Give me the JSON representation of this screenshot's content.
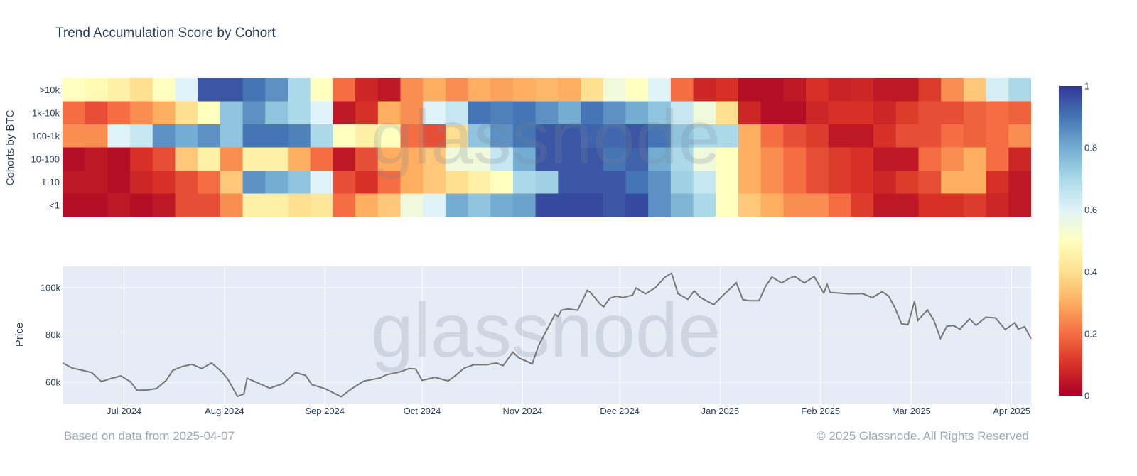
{
  "title": "Trend Accumulation Score by Cohort",
  "footer": {
    "left": "Based on data from 2025-04-07",
    "right": "© 2025 Glassnode. All Rights Reserved"
  },
  "watermark": "glassnode",
  "chart_data": [
    {
      "type": "heatmap",
      "ylabel": "Cohorts by BTC",
      "colorscale": "RdYlBu",
      "colors": [
        "#a50026",
        "#d73027",
        "#f46d43",
        "#fdae61",
        "#fee090",
        "#ffffbf",
        "#e0f3f8",
        "#abd9e9",
        "#74add1",
        "#4575b4",
        "#313695"
      ],
      "zlim": [
        0,
        1
      ],
      "colorbar_ticks": [
        "0",
        "0.2",
        "0.4",
        "0.6",
        "0.8",
        "1"
      ],
      "x_start": "2024-06-12",
      "x_end": "2025-04-07",
      "x_step": "weekly",
      "rows": [
        {
          "label": ">10k",
          "values": [
            0.5,
            0.48,
            0.45,
            0.4,
            0.5,
            0.6,
            0.95,
            0.95,
            0.9,
            0.85,
            0.7,
            0.5,
            0.2,
            0.08,
            0.05,
            0.25,
            0.3,
            0.25,
            0.3,
            0.28,
            0.3,
            0.32,
            0.3,
            0.4,
            0.55,
            0.5,
            0.6,
            0.2,
            0.08,
            0.1,
            0.03,
            0.03,
            0.05,
            0.1,
            0.07,
            0.08,
            0.05,
            0.05,
            0.12,
            0.25,
            0.35,
            0.62,
            0.7
          ]
        },
        {
          "label": "1k-10k",
          "values": [
            0.2,
            0.15,
            0.2,
            0.25,
            0.3,
            0.4,
            0.5,
            0.75,
            0.85,
            0.75,
            0.7,
            0.6,
            0.05,
            0.1,
            0.3,
            0.25,
            0.6,
            0.65,
            0.9,
            0.88,
            0.9,
            0.85,
            0.8,
            0.9,
            0.85,
            0.8,
            0.75,
            0.65,
            0.55,
            0.4,
            0.08,
            0.03,
            0.03,
            0.08,
            0.1,
            0.1,
            0.08,
            0.12,
            0.15,
            0.15,
            0.18,
            0.2,
            0.18
          ]
        },
        {
          "label": "100-1k",
          "values": [
            0.25,
            0.25,
            0.6,
            0.65,
            0.85,
            0.8,
            0.85,
            0.75,
            0.9,
            0.9,
            0.88,
            0.7,
            0.5,
            0.45,
            0.5,
            0.2,
            0.15,
            0.4,
            0.75,
            0.85,
            0.9,
            0.95,
            0.95,
            0.93,
            0.92,
            0.95,
            0.9,
            0.75,
            0.7,
            0.7,
            0.3,
            0.2,
            0.15,
            0.12,
            0.05,
            0.05,
            0.1,
            0.15,
            0.15,
            0.2,
            0.18,
            0.2,
            0.25
          ]
        },
        {
          "label": "10-100",
          "values": [
            0.03,
            0.05,
            0.03,
            0.1,
            0.15,
            0.35,
            0.45,
            0.25,
            0.45,
            0.45,
            0.3,
            0.2,
            0.05,
            0.15,
            0.3,
            0.3,
            0.35,
            0.55,
            0.55,
            0.65,
            0.8,
            0.95,
            0.95,
            0.95,
            0.9,
            0.93,
            0.8,
            0.7,
            0.55,
            0.5,
            0.3,
            0.25,
            0.2,
            0.15,
            0.12,
            0.1,
            0.05,
            0.05,
            0.2,
            0.25,
            0.3,
            0.2,
            0.08
          ]
        },
        {
          "label": "1-10",
          "values": [
            0.05,
            0.05,
            0.03,
            0.08,
            0.1,
            0.15,
            0.2,
            0.35,
            0.85,
            0.8,
            0.75,
            0.6,
            0.15,
            0.1,
            0.2,
            0.3,
            0.35,
            0.4,
            0.45,
            0.5,
            0.7,
            0.72,
            0.95,
            0.95,
            0.95,
            0.9,
            0.85,
            0.72,
            0.65,
            0.5,
            0.3,
            0.25,
            0.2,
            0.15,
            0.12,
            0.1,
            0.08,
            0.12,
            0.15,
            0.3,
            0.3,
            0.1,
            0.05
          ]
        },
        {
          "label": "<1",
          "values": [
            0.03,
            0.03,
            0.05,
            0.03,
            0.05,
            0.15,
            0.15,
            0.25,
            0.45,
            0.45,
            0.4,
            0.42,
            0.2,
            0.3,
            0.35,
            0.55,
            0.6,
            0.8,
            0.75,
            0.8,
            0.82,
            0.97,
            0.97,
            0.97,
            0.95,
            0.97,
            0.85,
            0.78,
            0.7,
            0.5,
            0.35,
            0.3,
            0.25,
            0.25,
            0.2,
            0.12,
            0.05,
            0.05,
            0.1,
            0.1,
            0.12,
            0.08,
            0.05
          ]
        }
      ]
    },
    {
      "type": "line",
      "ylabel": "Price",
      "ylim": [
        51000,
        109000
      ],
      "yticks": [
        {
          "v": 60000,
          "label": "60k"
        },
        {
          "v": 80000,
          "label": "80k"
        },
        {
          "v": 100000,
          "label": "100k"
        }
      ],
      "xticks": [
        {
          "date": "2024-07-01",
          "label": "Jul 2024"
        },
        {
          "date": "2024-08-01",
          "label": "Aug 2024"
        },
        {
          "date": "2024-09-01",
          "label": "Sep 2024"
        },
        {
          "date": "2024-10-01",
          "label": "Oct 2024"
        },
        {
          "date": "2024-11-01",
          "label": "Nov 2024"
        },
        {
          "date": "2024-12-01",
          "label": "Dec 2024"
        },
        {
          "date": "2025-01-01",
          "label": "Jan 2025"
        },
        {
          "date": "2025-02-01",
          "label": "Feb 2025"
        },
        {
          "date": "2025-03-01",
          "label": "Mar 2025"
        },
        {
          "date": "2025-04-01",
          "label": "Apr 2025"
        }
      ],
      "line_color": "#777777",
      "grid": true,
      "points": [
        [
          "2024-06-12",
          68200
        ],
        [
          "2024-06-15",
          66000
        ],
        [
          "2024-06-18",
          65100
        ],
        [
          "2024-06-21",
          64100
        ],
        [
          "2024-06-24",
          60300
        ],
        [
          "2024-06-27",
          61600
        ],
        [
          "2024-06-30",
          62700
        ],
        [
          "2024-07-03",
          60200
        ],
        [
          "2024-07-05",
          56600
        ],
        [
          "2024-07-08",
          56700
        ],
        [
          "2024-07-11",
          57300
        ],
        [
          "2024-07-14",
          60800
        ],
        [
          "2024-07-16",
          65000
        ],
        [
          "2024-07-19",
          66700
        ],
        [
          "2024-07-22",
          67600
        ],
        [
          "2024-07-25",
          65800
        ],
        [
          "2024-07-28",
          68200
        ],
        [
          "2024-07-31",
          64600
        ],
        [
          "2024-08-02",
          61400
        ],
        [
          "2024-08-05",
          54000
        ],
        [
          "2024-08-07",
          55100
        ],
        [
          "2024-08-08",
          61700
        ],
        [
          "2024-08-12",
          59300
        ],
        [
          "2024-08-15",
          57500
        ],
        [
          "2024-08-19",
          59400
        ],
        [
          "2024-08-23",
          64100
        ],
        [
          "2024-08-26",
          62900
        ],
        [
          "2024-08-28",
          59000
        ],
        [
          "2024-09-01",
          57300
        ],
        [
          "2024-09-06",
          53900
        ],
        [
          "2024-09-09",
          57000
        ],
        [
          "2024-09-13",
          60500
        ],
        [
          "2024-09-18",
          61800
        ],
        [
          "2024-09-20",
          63200
        ],
        [
          "2024-09-24",
          64300
        ],
        [
          "2024-09-27",
          65800
        ],
        [
          "2024-09-29",
          65600
        ],
        [
          "2024-10-01",
          60800
        ],
        [
          "2024-10-05",
          62100
        ],
        [
          "2024-10-09",
          60600
        ],
        [
          "2024-10-11",
          62500
        ],
        [
          "2024-10-14",
          66000
        ],
        [
          "2024-10-17",
          67400
        ],
        [
          "2024-10-21",
          67400
        ],
        [
          "2024-10-24",
          68200
        ],
        [
          "2024-10-26",
          67000
        ],
        [
          "2024-10-29",
          72700
        ],
        [
          "2024-10-31",
          70200
        ],
        [
          "2024-11-04",
          67800
        ],
        [
          "2024-11-06",
          75600
        ],
        [
          "2024-11-11",
          88700
        ],
        [
          "2024-11-12",
          87900
        ],
        [
          "2024-11-13",
          90500
        ],
        [
          "2024-11-15",
          91000
        ],
        [
          "2024-11-18",
          90500
        ],
        [
          "2024-11-21",
          98900
        ],
        [
          "2024-11-22",
          98000
        ],
        [
          "2024-11-25",
          93000
        ],
        [
          "2024-11-26",
          91900
        ],
        [
          "2024-11-28",
          95600
        ],
        [
          "2024-11-30",
          96400
        ],
        [
          "2024-12-02",
          95800
        ],
        [
          "2024-12-05",
          96900
        ],
        [
          "2024-12-06",
          99900
        ],
        [
          "2024-12-09",
          97400
        ],
        [
          "2024-12-12",
          100000
        ],
        [
          "2024-12-15",
          104500
        ],
        [
          "2024-12-17",
          106100
        ],
        [
          "2024-12-19",
          97500
        ],
        [
          "2024-12-22",
          95100
        ],
        [
          "2024-12-24",
          98700
        ],
        [
          "2024-12-26",
          95800
        ],
        [
          "2024-12-30",
          92800
        ],
        [
          "2025-01-02",
          96900
        ],
        [
          "2025-01-06",
          102100
        ],
        [
          "2025-01-08",
          95000
        ],
        [
          "2025-01-10",
          94500
        ],
        [
          "2025-01-13",
          94500
        ],
        [
          "2025-01-15",
          100500
        ],
        [
          "2025-01-17",
          104500
        ],
        [
          "2025-01-20",
          102000
        ],
        [
          "2025-01-22",
          103700
        ],
        [
          "2025-01-24",
          104800
        ],
        [
          "2025-01-27",
          102000
        ],
        [
          "2025-01-30",
          104700
        ],
        [
          "2025-02-02",
          97700
        ],
        [
          "2025-02-03",
          101400
        ],
        [
          "2025-02-04",
          98000
        ],
        [
          "2025-02-10",
          97400
        ],
        [
          "2025-02-14",
          97500
        ],
        [
          "2025-02-17",
          95800
        ],
        [
          "2025-02-20",
          98300
        ],
        [
          "2025-02-22",
          96500
        ],
        [
          "2025-02-24",
          91400
        ],
        [
          "2025-02-26",
          84700
        ],
        [
          "2025-02-28",
          84400
        ],
        [
          "2025-03-02",
          94200
        ],
        [
          "2025-03-03",
          86100
        ],
        [
          "2025-03-06",
          90600
        ],
        [
          "2025-03-08",
          86200
        ],
        [
          "2025-03-10",
          78500
        ],
        [
          "2025-03-12",
          83700
        ],
        [
          "2025-03-14",
          84000
        ],
        [
          "2025-03-16",
          82500
        ],
        [
          "2025-03-19",
          86800
        ],
        [
          "2025-03-21",
          84100
        ],
        [
          "2025-03-24",
          87500
        ],
        [
          "2025-03-27",
          87200
        ],
        [
          "2025-03-30",
          82300
        ],
        [
          "2025-04-02",
          85200
        ],
        [
          "2025-04-03",
          82500
        ],
        [
          "2025-04-05",
          83500
        ],
        [
          "2025-04-07",
          78400
        ]
      ]
    }
  ]
}
